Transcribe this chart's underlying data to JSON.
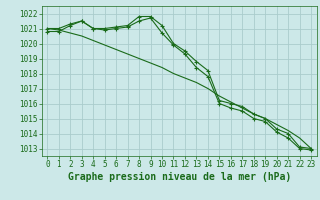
{
  "x": [
    0,
    1,
    2,
    3,
    4,
    5,
    6,
    7,
    8,
    9,
    10,
    11,
    12,
    13,
    14,
    15,
    16,
    17,
    18,
    19,
    20,
    21,
    22,
    23
  ],
  "line1": [
    1021.0,
    1021.0,
    1021.3,
    1021.5,
    1021.0,
    1021.0,
    1021.1,
    1021.2,
    1021.8,
    1021.8,
    1021.2,
    1020.0,
    1019.5,
    1018.8,
    1018.2,
    1016.2,
    1016.0,
    1015.8,
    1015.3,
    1015.0,
    1014.3,
    1014.0,
    1013.1,
    1013.0
  ],
  "line2": [
    1020.8,
    1020.8,
    1021.2,
    1021.5,
    1021.0,
    1020.9,
    1021.0,
    1021.1,
    1021.5,
    1021.7,
    1020.7,
    1019.9,
    1019.3,
    1018.4,
    1017.8,
    1016.0,
    1015.7,
    1015.5,
    1015.0,
    1014.8,
    1014.1,
    1013.7,
    1013.0,
    1012.9
  ],
  "line3": [
    1021.0,
    1020.9,
    1020.7,
    1020.5,
    1020.2,
    1019.9,
    1019.6,
    1019.3,
    1019.0,
    1018.7,
    1018.4,
    1018.0,
    1017.7,
    1017.4,
    1017.0,
    1016.5,
    1016.1,
    1015.7,
    1015.3,
    1015.0,
    1014.6,
    1014.2,
    1013.7,
    1013.0
  ],
  "line_color": "#1a6b1a",
  "marker": "+",
  "bg_color": "#cce8e8",
  "grid_color": "#aacccc",
  "xlabel": "Graphe pression niveau de la mer (hPa)",
  "ylim": [
    1012.5,
    1022.5
  ],
  "yticks": [
    1013,
    1014,
    1015,
    1016,
    1017,
    1018,
    1019,
    1020,
    1021,
    1022
  ],
  "xticks": [
    0,
    1,
    2,
    3,
    4,
    5,
    6,
    7,
    8,
    9,
    10,
    11,
    12,
    13,
    14,
    15,
    16,
    17,
    18,
    19,
    20,
    21,
    22,
    23
  ],
  "tick_label_size": 5.5,
  "xlabel_fontsize": 7.0
}
